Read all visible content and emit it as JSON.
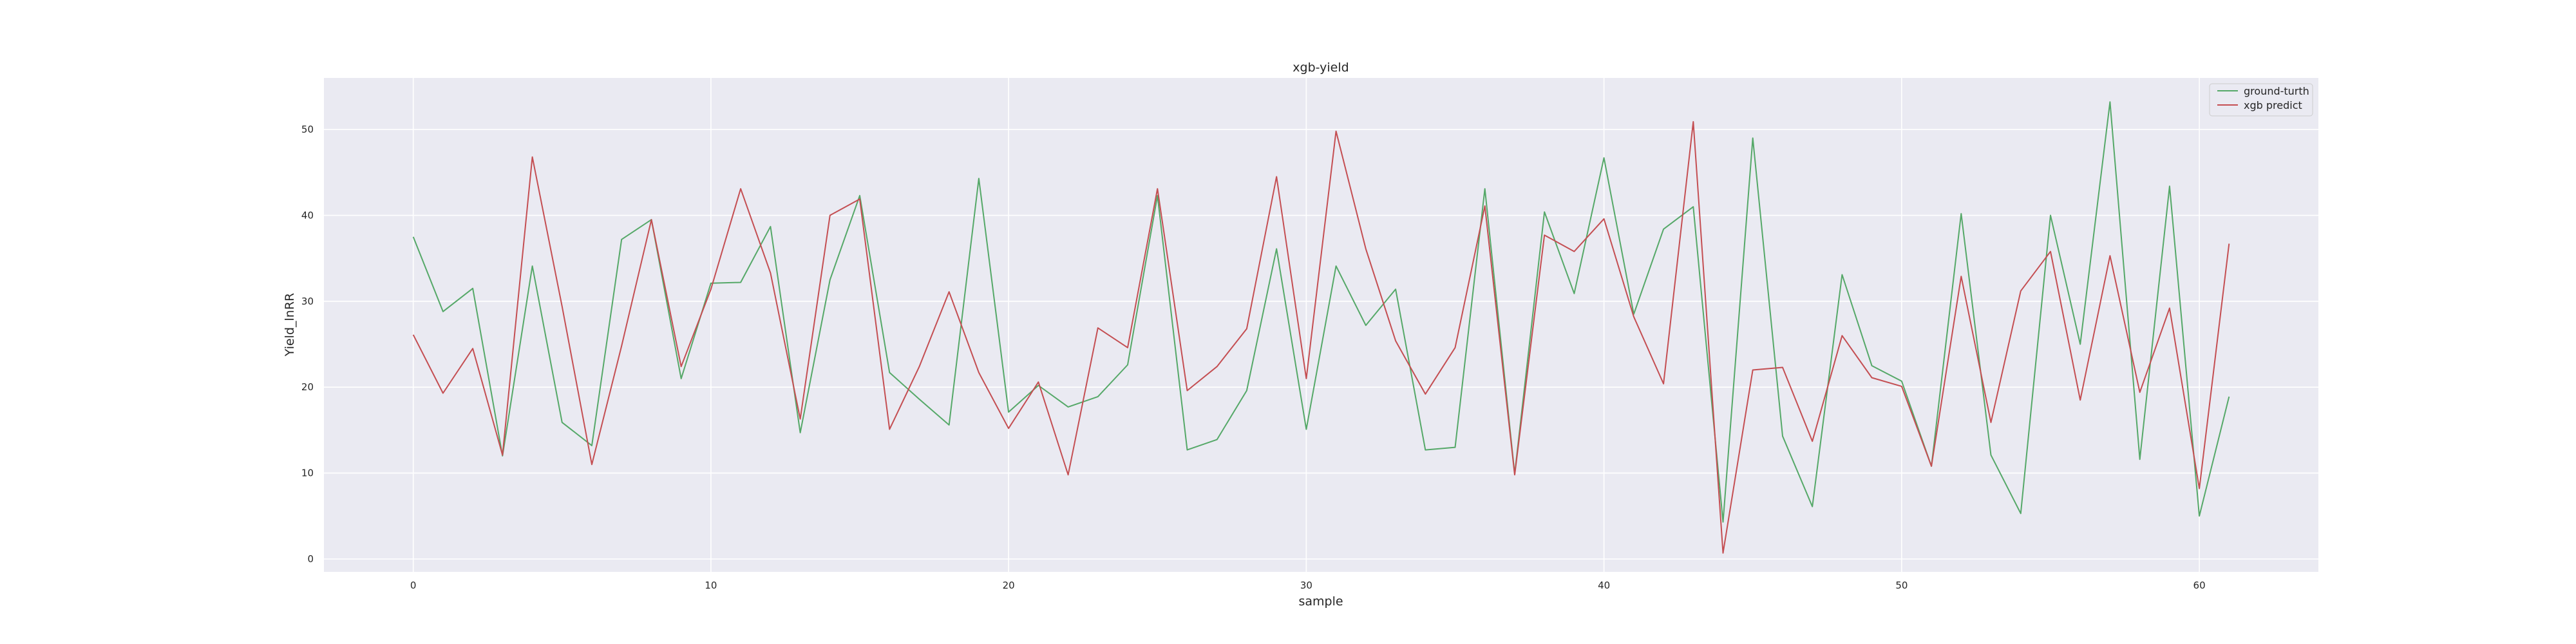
{
  "chart_data": {
    "type": "line",
    "title": "xgb-yield",
    "xlabel": "sample",
    "ylabel": "Yield_lnRR",
    "xlim": [
      -3,
      64
    ],
    "ylim": [
      -1.5,
      56
    ],
    "xticks": [
      0,
      10,
      20,
      30,
      40,
      50,
      60
    ],
    "yticks": [
      0,
      10,
      20,
      30,
      40,
      50
    ],
    "grid": true,
    "legend_position": "top-right",
    "x": [
      0,
      1,
      2,
      3,
      4,
      5,
      6,
      7,
      8,
      9,
      10,
      11,
      12,
      13,
      14,
      15,
      16,
      17,
      18,
      19,
      20,
      21,
      22,
      23,
      24,
      25,
      26,
      27,
      28,
      29,
      30,
      31,
      32,
      33,
      34,
      35,
      36,
      37,
      38,
      39,
      40,
      41,
      42,
      43,
      44,
      45,
      46,
      47,
      48,
      49,
      50,
      51,
      52,
      53,
      54,
      55,
      56,
      57,
      58,
      59,
      60,
      61
    ],
    "series": [
      {
        "name": "ground-turth",
        "color": "#55a868",
        "values": [
          37.5,
          28.8,
          31.5,
          12.0,
          34.1,
          15.9,
          13.2,
          37.2,
          39.5,
          21.0,
          32.1,
          32.2,
          38.7,
          14.7,
          32.5,
          42.3,
          21.7,
          18.6,
          15.6,
          44.3,
          17.1,
          20.2,
          17.7,
          18.9,
          22.6,
          42.3,
          12.7,
          13.9,
          19.6,
          36.1,
          15.1,
          34.1,
          27.2,
          31.4,
          12.7,
          13.0,
          43.1,
          9.9,
          40.4,
          30.9,
          46.7,
          28.5,
          38.4,
          41.0,
          4.3,
          49.0,
          14.3,
          6.1,
          33.1,
          22.5,
          20.7,
          10.8,
          40.2,
          12.1,
          5.3,
          40.0,
          25.0,
          53.2,
          11.6,
          43.4,
          5.0,
          18.9
        ]
      },
      {
        "name": "xgb predict",
        "color": "#c44e52",
        "values": [
          26.1,
          19.3,
          24.5,
          12.1,
          46.8,
          29.4,
          11.0,
          24.8,
          39.5,
          22.4,
          31.4,
          43.1,
          33.3,
          16.3,
          40.0,
          41.9,
          15.1,
          22.4,
          31.1,
          21.7,
          15.2,
          20.6,
          9.8,
          26.9,
          24.6,
          43.1,
          19.6,
          22.4,
          26.8,
          44.5,
          21.0,
          49.8,
          36.1,
          25.4,
          19.2,
          24.6,
          41.1,
          9.8,
          37.7,
          35.8,
          39.6,
          28.2,
          20.4,
          50.9,
          0.7,
          22.0,
          22.3,
          13.7,
          26.0,
          21.1,
          20.1,
          10.8,
          32.9,
          15.9,
          31.2,
          35.8,
          18.5,
          35.3,
          19.4,
          29.2,
          8.2,
          36.7
        ]
      }
    ]
  }
}
